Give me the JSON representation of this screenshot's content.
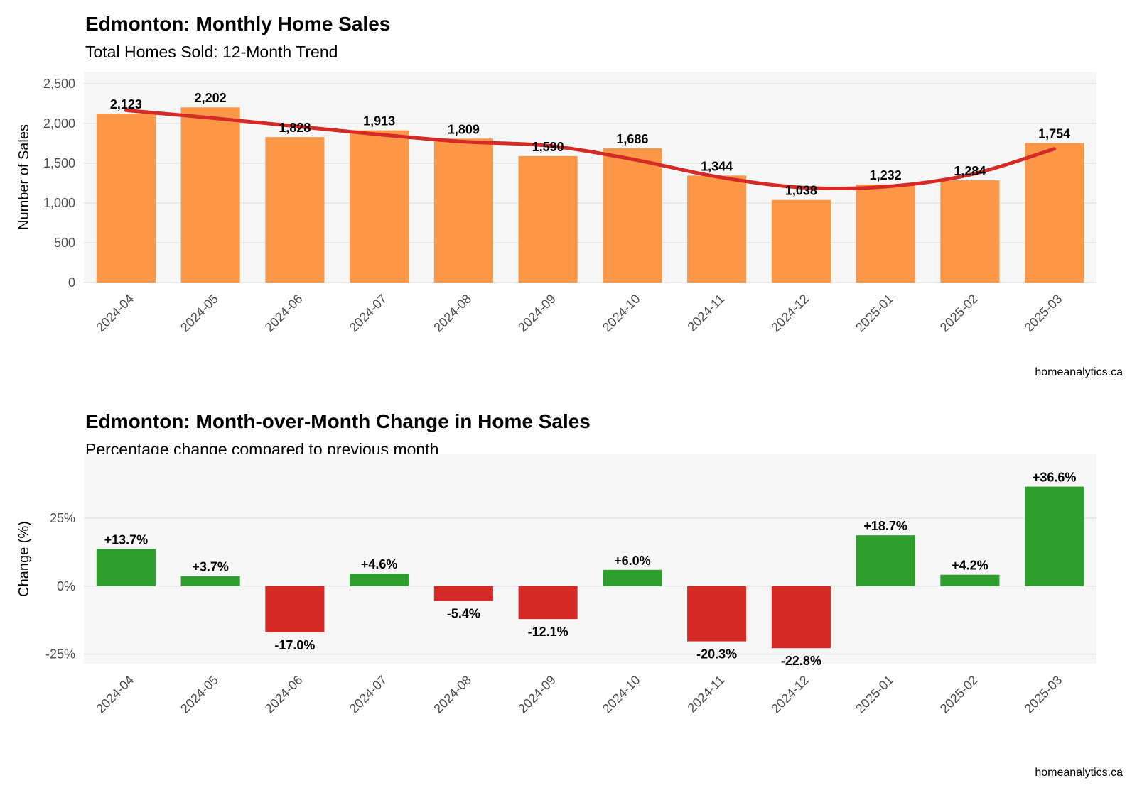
{
  "chart_data": [
    {
      "type": "bar",
      "title": "Edmonton: Monthly Home Sales",
      "subtitle": "Total Homes Sold: 12-Month Trend",
      "xlabel": "",
      "ylabel": "Number of Sales",
      "caption": "homeanalytics.ca",
      "categories": [
        "2024-04",
        "2024-05",
        "2024-06",
        "2024-07",
        "2024-08",
        "2024-09",
        "2024-10",
        "2024-11",
        "2024-12",
        "2025-01",
        "2025-02",
        "2025-03"
      ],
      "values": [
        2123,
        2202,
        1828,
        1913,
        1809,
        1590,
        1686,
        1344,
        1038,
        1232,
        1284,
        1754
      ],
      "value_labels": [
        "2,123",
        "2,202",
        "1,828",
        "1,913",
        "1,809",
        "1,590",
        "1,686",
        "1,344",
        "1,038",
        "1,232",
        "1,284",
        "1,754"
      ],
      "trend_line": [
        2165,
        2070,
        1965,
        1860,
        1770,
        1720,
        1550,
        1330,
        1195,
        1205,
        1355,
        1680
      ],
      "ylim": [
        0,
        2650
      ],
      "yticks": [
        0,
        500,
        1000,
        1500,
        2000,
        2500
      ],
      "ytick_labels": [
        "0",
        "500",
        "1,000",
        "1,500",
        "2,000",
        "2,500"
      ],
      "grid": true,
      "colors": {
        "bar": "#FD9748",
        "trend": "#D62A27",
        "panel_bg": "#F7F7F7",
        "grid": "#E6E6E6"
      }
    },
    {
      "type": "bar",
      "title": "Edmonton: Month-over-Month Change in Home Sales",
      "subtitle": "Percentage change compared to previous month",
      "xlabel": "",
      "ylabel": "Change (%)",
      "caption": "homeanalytics.ca",
      "categories": [
        "2024-04",
        "2024-05",
        "2024-06",
        "2024-07",
        "2024-08",
        "2024-09",
        "2024-10",
        "2024-11",
        "2024-12",
        "2025-01",
        "2025-02",
        "2025-03"
      ],
      "values": [
        13.7,
        3.7,
        -17.0,
        4.6,
        -5.4,
        -12.1,
        6.0,
        -20.3,
        -22.8,
        18.7,
        4.2,
        36.6
      ],
      "value_labels": [
        "+13.7%",
        "+3.7%",
        "-17.0%",
        "+4.6%",
        "-5.4%",
        "-12.1%",
        "+6.0%",
        "-20.3%",
        "-22.8%",
        "+18.7%",
        "+4.2%",
        "+36.6%"
      ],
      "ylim": [
        -28.5,
        48.5
      ],
      "yticks": [
        -25,
        0,
        25
      ],
      "ytick_labels": [
        "-25%",
        "0%",
        "25%"
      ],
      "grid": true,
      "colors": {
        "positive": "#2E9F2C",
        "negative": "#D62A27",
        "panel_bg": "#F7F7F7",
        "grid": "#E6E6E6"
      }
    }
  ]
}
